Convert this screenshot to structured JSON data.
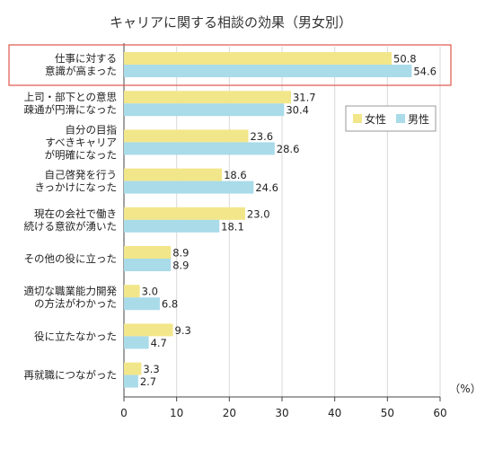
{
  "chart_data": {
    "type": "bar",
    "orientation": "horizontal",
    "title": "キャリアに関する相談の効果（男女別）",
    "unit_label": "（%）",
    "xlim": [
      0,
      60
    ],
    "x_ticks": [
      "0",
      "10",
      "20",
      "30",
      "40",
      "50",
      "60"
    ],
    "grid": true,
    "legend_position": "right",
    "highlighted_category_index": 0,
    "categories": [
      [
        "仕事に対する",
        "意識が高まった"
      ],
      [
        "上司・部下との意思",
        "疎通が円滑になった"
      ],
      [
        "自分の目指",
        "すべきキャリア",
        "が明確になった"
      ],
      [
        "自己啓発を行う",
        "きっかけになった"
      ],
      [
        "現在の会社で働き",
        "続ける意欲が湧いた"
      ],
      [
        "その他の役に立った"
      ],
      [
        "適切な職業能力開発",
        "の方法がわかった"
      ],
      [
        "役に立たなかった"
      ],
      [
        "再就職につながった"
      ]
    ],
    "series": [
      {
        "name": "女性",
        "color": "#f2e68a",
        "values": [
          50.8,
          31.7,
          23.6,
          18.6,
          23.0,
          8.9,
          3.0,
          9.3,
          3.3
        ],
        "labels": [
          "50.8",
          "31.7",
          "23.6",
          "18.6",
          "23.0",
          "8.9",
          "3.0",
          "9.3",
          "3.3"
        ]
      },
      {
        "name": "男性",
        "color": "#a9dbe9",
        "values": [
          54.6,
          30.4,
          28.6,
          24.6,
          18.1,
          8.9,
          6.8,
          4.7,
          2.7
        ],
        "labels": [
          "54.6",
          "30.4",
          "28.6",
          "24.6",
          "18.1",
          "8.9",
          "6.8",
          "4.7",
          "2.7"
        ]
      }
    ],
    "highlight_color": "#e0564b",
    "grid_color": "#d9d9d9"
  }
}
